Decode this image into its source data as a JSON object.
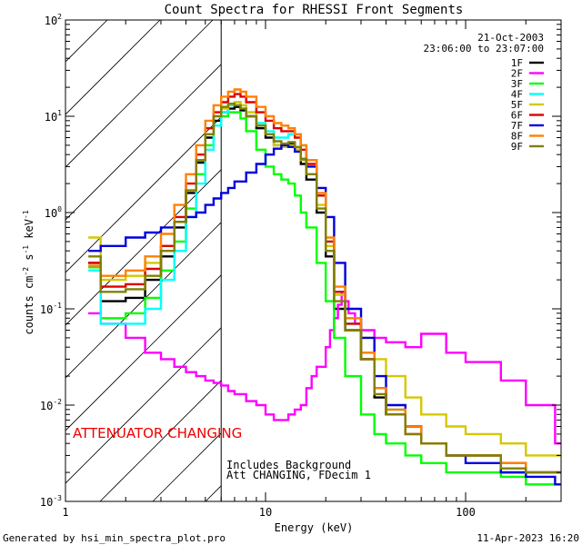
{
  "chart_data": {
    "type": "line",
    "title": "Count Spectra for RHESSI Front Segments",
    "xlabel": "Energy (keV)",
    "ylabel": "counts cm",
    "ylabel_full": "counts cm^-2 s^-1 keV^-1",
    "x_scale": "log",
    "y_scale": "log",
    "xlim": [
      1,
      300
    ],
    "ylim": [
      0.001,
      100
    ],
    "x_ticks": [
      {
        "value": 1,
        "label": "1"
      },
      {
        "value": 10,
        "label": "10"
      },
      {
        "value": 100,
        "label": "100"
      }
    ],
    "y_ticks": [
      {
        "value": 0.001,
        "label": "10",
        "exp": "-3"
      },
      {
        "value": 0.01,
        "label": "10",
        "exp": "-2"
      },
      {
        "value": 0.1,
        "label": "10",
        "exp": "-1"
      },
      {
        "value": 1,
        "label": "10",
        "exp": "0"
      },
      {
        "value": 10,
        "label": "10",
        "exp": "1"
      },
      {
        "value": 100,
        "label": "10",
        "exp": "2"
      }
    ],
    "date": "21-Oct-2003",
    "time_range": "23:06:00 to 23:07:00",
    "attenuator_note": "ATTENUATOR CHANGING",
    "background_note": "Includes Background",
    "att_note": "Att CHANGING, FDecim 1",
    "attenuator_threshold_kev": 6,
    "footer_left": "Generated by hsi_min_spectra_plot.pro",
    "footer_right": "11-Apr-2023 16:20",
    "series": [
      {
        "name": "1F",
        "color": "#000000",
        "x": [
          1.3,
          1.5,
          2,
          2.5,
          3,
          3.5,
          4,
          4.5,
          5,
          5.5,
          6,
          6.5,
          7,
          7.5,
          8,
          9,
          10,
          11,
          12,
          13,
          14,
          15,
          16,
          18,
          20,
          22,
          25,
          30,
          35,
          40,
          50,
          60,
          80,
          100,
          150,
          200,
          280
        ],
        "y": [
          0.3,
          0.12,
          0.13,
          0.2,
          0.35,
          0.7,
          1.6,
          3.3,
          6.0,
          9.0,
          11.0,
          12.0,
          12.5,
          11.5,
          10.0,
          7.5,
          6.0,
          5.0,
          5.0,
          5.2,
          4.5,
          3.2,
          2.2,
          1.0,
          0.35,
          0.1,
          0.06,
          0.03,
          0.012,
          0.008,
          0.006,
          0.004,
          0.003,
          0.003,
          0.002,
          0.002,
          0.002
        ]
      },
      {
        "name": "2F",
        "color": "#ff00ff",
        "x": [
          1.3,
          1.5,
          2,
          2.5,
          3,
          3.5,
          4,
          4.5,
          5,
          5.5,
          6,
          6.5,
          7,
          8,
          9,
          10,
          11,
          12,
          13,
          14,
          15,
          16,
          17,
          18,
          20,
          21,
          22,
          23,
          24,
          25,
          26,
          28,
          30,
          35,
          40,
          50,
          60,
          80,
          100,
          150,
          200,
          280
        ],
        "y": [
          0.09,
          0.07,
          0.05,
          0.035,
          0.03,
          0.025,
          0.022,
          0.02,
          0.018,
          0.017,
          0.016,
          0.014,
          0.013,
          0.011,
          0.01,
          0.008,
          0.007,
          0.007,
          0.008,
          0.009,
          0.01,
          0.015,
          0.02,
          0.025,
          0.04,
          0.06,
          0.08,
          0.11,
          0.15,
          0.12,
          0.09,
          0.07,
          0.06,
          0.05,
          0.045,
          0.04,
          0.055,
          0.035,
          0.028,
          0.018,
          0.01,
          0.004
        ]
      },
      {
        "name": "3F",
        "color": "#00ff00",
        "x": [
          1.3,
          1.5,
          2,
          2.5,
          3,
          3.5,
          4,
          4.5,
          5,
          5.5,
          6,
          6.5,
          7,
          7.5,
          8,
          9,
          10,
          11,
          12,
          13,
          14,
          15,
          16,
          18,
          20,
          22,
          25,
          30,
          35,
          40,
          50,
          60,
          80,
          100,
          150,
          200,
          280
        ],
        "y": [
          0.27,
          0.08,
          0.09,
          0.13,
          0.25,
          0.5,
          1.1,
          2.5,
          5.0,
          8.0,
          10.0,
          11.0,
          11.0,
          9.5,
          7.0,
          4.5,
          3.0,
          2.5,
          2.2,
          2.0,
          1.5,
          1.0,
          0.7,
          0.3,
          0.12,
          0.05,
          0.02,
          0.008,
          0.005,
          0.004,
          0.003,
          0.0025,
          0.002,
          0.002,
          0.0018,
          0.0015,
          0.0015
        ]
      },
      {
        "name": "4F",
        "color": "#00ffff",
        "x": [
          1.3,
          1.5,
          2,
          2.5,
          3,
          3.5,
          4,
          4.5,
          5,
          5.5,
          6,
          6.5,
          7,
          7.5,
          8,
          9,
          10,
          11,
          12,
          13,
          14,
          15,
          16,
          18,
          20,
          22,
          25,
          30,
          35,
          40,
          50,
          60,
          80,
          100,
          150,
          200,
          280
        ],
        "y": [
          0.25,
          0.07,
          0.07,
          0.1,
          0.2,
          0.4,
          0.9,
          2.0,
          4.5,
          8.0,
          11.0,
          13.0,
          14.0,
          13.0,
          11.0,
          8.5,
          7.0,
          6.0,
          6.0,
          6.5,
          6.5,
          5.0,
          3.5,
          1.5,
          0.5,
          0.15,
          0.07,
          0.035,
          0.015,
          0.009,
          0.006,
          0.004,
          0.003,
          0.003,
          0.0025,
          0.002,
          0.002
        ]
      },
      {
        "name": "5F",
        "color": "#d4c800",
        "x": [
          1.3,
          1.5,
          2,
          2.5,
          3,
          3.5,
          4,
          4.5,
          5,
          5.5,
          6,
          6.5,
          7,
          7.5,
          8,
          9,
          10,
          11,
          12,
          13,
          14,
          15,
          16,
          18,
          20,
          22,
          25,
          30,
          35,
          40,
          50,
          60,
          80,
          100,
          150,
          200,
          280
        ],
        "y": [
          0.55,
          0.2,
          0.22,
          0.3,
          0.45,
          0.8,
          1.7,
          3.5,
          6.5,
          10.0,
          12.0,
          13.5,
          14.0,
          13.0,
          11.0,
          8.0,
          6.5,
          5.0,
          4.8,
          5.0,
          4.5,
          3.5,
          2.5,
          1.2,
          0.45,
          0.14,
          0.08,
          0.05,
          0.03,
          0.02,
          0.012,
          0.008,
          0.006,
          0.005,
          0.004,
          0.003,
          0.003
        ]
      },
      {
        "name": "6F",
        "color": "#dd0000",
        "x": [
          1.3,
          1.5,
          2,
          2.5,
          3,
          3.5,
          4,
          4.5,
          5,
          5.5,
          6,
          6.5,
          7,
          7.5,
          8,
          9,
          10,
          11,
          12,
          13,
          14,
          15,
          16,
          18,
          20,
          22,
          25,
          30,
          35,
          40,
          50,
          60,
          80,
          100,
          150,
          200,
          280
        ],
        "y": [
          0.3,
          0.17,
          0.18,
          0.26,
          0.45,
          0.9,
          2.0,
          4.0,
          7.5,
          11.0,
          14.0,
          16.0,
          17.0,
          16.0,
          14.0,
          11.0,
          9.0,
          7.5,
          7.0,
          7.0,
          6.0,
          4.5,
          3.2,
          1.5,
          0.5,
          0.15,
          0.07,
          0.03,
          0.015,
          0.008,
          0.005,
          0.004,
          0.003,
          0.003,
          0.0025,
          0.002,
          0.002
        ]
      },
      {
        "name": "7F",
        "color": "#0000dd",
        "x": [
          1.3,
          1.5,
          2,
          2.5,
          3,
          3.5,
          4,
          4.5,
          5,
          5.5,
          6,
          6.5,
          7,
          8,
          9,
          10,
          11,
          12,
          13,
          14,
          15,
          16,
          18,
          20,
          22,
          25,
          30,
          35,
          40,
          50,
          60,
          80,
          100,
          150,
          200,
          280
        ],
        "y": [
          0.4,
          0.45,
          0.55,
          0.62,
          0.7,
          0.8,
          0.9,
          1.0,
          1.2,
          1.4,
          1.6,
          1.8,
          2.1,
          2.6,
          3.2,
          4.0,
          4.6,
          5.0,
          4.8,
          4.3,
          3.6,
          3.0,
          1.8,
          0.9,
          0.3,
          0.1,
          0.05,
          0.02,
          0.01,
          0.006,
          0.004,
          0.003,
          0.0025,
          0.002,
          0.0018,
          0.0015
        ]
      },
      {
        "name": "8F",
        "color": "#ff8000",
        "x": [
          1.3,
          1.5,
          2,
          2.5,
          3,
          3.5,
          4,
          4.5,
          5,
          5.5,
          6,
          6.5,
          7,
          7.5,
          8,
          9,
          10,
          11,
          12,
          13,
          14,
          15,
          16,
          18,
          20,
          22,
          25,
          30,
          35,
          40,
          50,
          60,
          80,
          100,
          150,
          200,
          280
        ],
        "y": [
          0.28,
          0.22,
          0.25,
          0.35,
          0.6,
          1.2,
          2.5,
          5.0,
          9.0,
          13.0,
          16.0,
          18.0,
          19.0,
          18.0,
          16.0,
          12.5,
          10.0,
          8.5,
          8.0,
          7.5,
          6.5,
          5.0,
          3.5,
          1.6,
          0.55,
          0.17,
          0.08,
          0.035,
          0.015,
          0.009,
          0.006,
          0.004,
          0.003,
          0.003,
          0.0025,
          0.002,
          0.002
        ]
      },
      {
        "name": "9F",
        "color": "#808000",
        "x": [
          1.3,
          1.5,
          2,
          2.5,
          3,
          3.5,
          4,
          4.5,
          5,
          5.5,
          6,
          6.5,
          7,
          7.5,
          8,
          9,
          10,
          11,
          12,
          13,
          14,
          15,
          16,
          18,
          20,
          22,
          25,
          30,
          35,
          40,
          50,
          60,
          80,
          100,
          150,
          200,
          280
        ],
        "y": [
          0.35,
          0.15,
          0.16,
          0.22,
          0.4,
          0.8,
          1.7,
          3.5,
          6.5,
          10.0,
          12.5,
          13.5,
          13.0,
          12.0,
          10.0,
          8.0,
          6.5,
          5.5,
          5.2,
          5.4,
          4.8,
          3.6,
          2.5,
          1.1,
          0.4,
          0.12,
          0.06,
          0.03,
          0.013,
          0.008,
          0.005,
          0.004,
          0.003,
          0.003,
          0.0022,
          0.002,
          0.002
        ]
      }
    ]
  }
}
